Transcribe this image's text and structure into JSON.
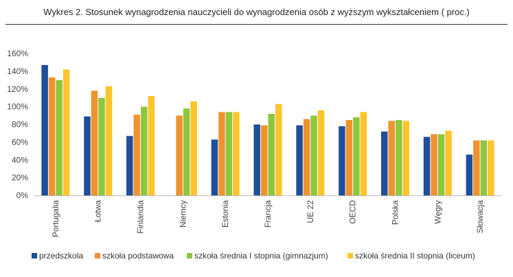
{
  "chart_data": {
    "type": "bar",
    "title": "Wykres 2. Stosunek wynagrodzenia nauczycieli do wynagrodzenia osób z wyższym wykształceniem ( proc.)",
    "categories": [
      "Portugalia",
      "Łotwa",
      "Finlandia",
      "Niemcy",
      "Estonia",
      "Francja",
      "UE 22",
      "OECD",
      "Polska",
      "Węgry",
      "Słowacja"
    ],
    "series": [
      {
        "name": "przedszkola",
        "color": "#1F4E9A",
        "values": [
          147,
          89,
          67,
          null,
          63,
          80,
          79,
          78,
          72,
          66,
          46
        ]
      },
      {
        "name": "szkoła podstawowa",
        "color": "#F0922E",
        "values": [
          133,
          118,
          91,
          90,
          94,
          79,
          86,
          85,
          84,
          69,
          62
        ]
      },
      {
        "name": "szkoła średnia I stopnia (gimnazjum)",
        "color": "#8DC63F",
        "values": [
          130,
          110,
          100,
          98,
          94,
          92,
          90,
          88,
          85,
          69,
          62
        ]
      },
      {
        "name": "szkoła średnia II stopnia (liceum)",
        "color": "#FDC52C",
        "values": [
          142,
          123,
          112,
          106,
          94,
          103,
          96,
          94,
          84,
          73,
          62
        ]
      }
    ],
    "yticks": [
      "0%",
      "20%",
      "40%",
      "60%",
      "80%",
      "100%",
      "120%",
      "140%",
      "160%"
    ],
    "ylim": [
      0,
      160
    ],
    "grid": false,
    "legend": "bottom"
  }
}
